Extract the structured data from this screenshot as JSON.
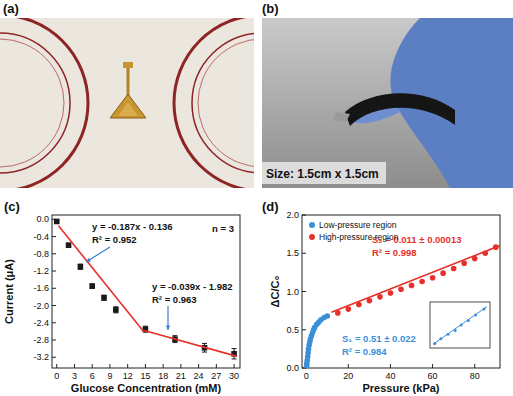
{
  "photos": [
    {
      "label": "(a)"
    },
    {
      "label": "(b)",
      "caption": "Size: 1.5cm x 1.5cm"
    }
  ],
  "chart_data": [
    {
      "type": "scatter",
      "title": "(c)",
      "x_label": "Glucose Concentration (mM)",
      "y_label": "Current (μA)",
      "xlim": [
        -0.8,
        31
      ],
      "ylim": [
        -3.45,
        0.1
      ],
      "xticks": [
        0,
        3,
        6,
        9,
        12,
        15,
        18,
        21,
        24,
        27,
        30
      ],
      "yticks": [
        {
          "value": 0,
          "label": "0.0"
        },
        -0.4,
        -0.8,
        -1.2,
        -1.6,
        {
          "value": -2,
          "label": "-2.0"
        },
        -2.4,
        -2.8,
        -3.2
      ],
      "series": [
        {
          "type": "scatter",
          "marker": "square",
          "color": "#1a1a1a",
          "x": [
            0,
            2,
            4,
            6,
            8,
            10,
            15,
            20,
            25,
            30
          ],
          "values": [
            -0.05,
            -0.6,
            -1.1,
            -1.55,
            -1.82,
            -2.1,
            -2.55,
            -2.78,
            -2.98,
            -3.12
          ],
          "errors": [
            0.03,
            0.04,
            0.06,
            0.05,
            0.06,
            0.07,
            0.07,
            0.08,
            0.1,
            0.12
          ]
        },
        {
          "type": "line",
          "color": "#e8302a",
          "x": [
            0.3,
            14.8
          ],
          "values": [
            -0.15,
            -2.62
          ]
        },
        {
          "type": "line",
          "color": "#e8302a",
          "x": [
            14.8,
            30.5
          ],
          "values": [
            -2.58,
            -3.18
          ]
        }
      ],
      "annotations": [
        {
          "text": "n = 3"
        },
        {
          "text": "y = -0.187x - 0.136"
        },
        {
          "text": "R² = 0.952"
        },
        {
          "text": "y = -0.039x - 1.982"
        },
        {
          "text": "R² = 0.963"
        }
      ]
    },
    {
      "type": "scatter",
      "title": "(d)",
      "x_label": "Pressure (kPa)",
      "y_label": "ΔC/C₀",
      "xlim": [
        -2,
        92
      ],
      "ylim": [
        0,
        2
      ],
      "xticks": [
        0,
        20,
        40,
        60,
        80
      ],
      "yticks": [
        {
          "value": 0,
          "label": "0.0"
        },
        0.5,
        {
          "value": 1,
          "label": "1.0"
        },
        1.5,
        {
          "value": 2,
          "label": "2.0"
        }
      ],
      "legend": "upper left",
      "series": [
        {
          "name": "Low-pressure region",
          "type": "scatter",
          "marker": "circle",
          "color": "#3b8fd6",
          "x": [
            0.1,
            0.2,
            0.3,
            0.5,
            0.7,
            0.9,
            1.1,
            1.4,
            1.7,
            2.0,
            2.5,
            3,
            3.5,
            4,
            5,
            6,
            7,
            8.5,
            10
          ],
          "values": [
            0.01,
            0.03,
            0.06,
            0.1,
            0.15,
            0.2,
            0.25,
            0.3,
            0.34,
            0.38,
            0.42,
            0.46,
            0.5,
            0.53,
            0.57,
            0.6,
            0.63,
            0.66,
            0.68
          ]
        },
        {
          "name": "High-pressure region",
          "type": "scatter",
          "marker": "circle",
          "color": "#e8302a",
          "x": [
            15,
            20,
            25,
            30,
            35,
            40,
            45,
            50,
            55,
            60,
            65,
            70,
            75,
            80,
            85,
            90
          ],
          "values": [
            0.72,
            0.77,
            0.83,
            0.88,
            0.93,
            0.98,
            1.03,
            1.08,
            1.13,
            1.18,
            1.24,
            1.3,
            1.37,
            1.43,
            1.5,
            1.58
          ]
        },
        {
          "type": "line",
          "color": "#e8302a",
          "x": [
            12,
            92
          ],
          "values": [
            0.73,
            1.6
          ]
        }
      ],
      "annotations": [
        {
          "text": "S₂ = 0.011 ± 0.00013",
          "color": "#e8302a"
        },
        {
          "text": "R² = 0.998",
          "color": "#e8302a"
        },
        {
          "text": "S₁ = 0.51 ± 0.022",
          "color": "#3b8fd6"
        },
        {
          "text": "R² = 0.984",
          "color": "#3b8fd6"
        }
      ]
    },
    {
      "type": "scatter",
      "tick_labels": false,
      "xlim": [
        0,
        1
      ],
      "ylim": [
        0,
        1
      ],
      "series": [
        {
          "type": "scatter",
          "marker": "circle",
          "color": "#3b8fd6",
          "x": [
            0.08,
            0.18,
            0.3,
            0.42,
            0.52,
            0.64,
            0.76,
            0.9
          ],
          "values": [
            0.1,
            0.2,
            0.3,
            0.38,
            0.5,
            0.6,
            0.72,
            0.85
          ]
        },
        {
          "type": "line",
          "color": "#3b8fd6",
          "x": [
            0.05,
            0.95
          ],
          "values": [
            0.08,
            0.9
          ]
        }
      ]
    }
  ]
}
